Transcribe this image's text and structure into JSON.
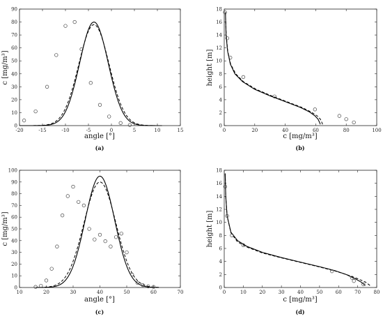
{
  "chart_data": [
    {
      "id": "a",
      "type": "scatter",
      "caption": "(a)",
      "xlabel": "angle [°]",
      "ylabel": "c [mg/m³]",
      "xlim": [
        -20,
        15
      ],
      "ylim": [
        0,
        90
      ],
      "xticks": [
        -20,
        -15,
        -10,
        -5,
        0,
        5,
        10,
        15
      ],
      "yticks": [
        0,
        10,
        20,
        30,
        40,
        50,
        60,
        70,
        80,
        90
      ],
      "grid": false,
      "points": [
        [
          -19,
          4
        ],
        [
          -16.5,
          11
        ],
        [
          -14,
          30
        ],
        [
          -12,
          54.5
        ],
        [
          -10,
          77
        ],
        [
          -8,
          80
        ],
        [
          -6.5,
          59
        ],
        [
          -4.5,
          33
        ],
        [
          -2.5,
          16
        ],
        [
          -0.5,
          7
        ],
        [
          2,
          2
        ],
        [
          4,
          0.5
        ]
      ],
      "curves": [
        {
          "style": "solid",
          "kind": "gauss",
          "peak_x": -3.8,
          "peak_y": 80,
          "sigma": 3.1,
          "range": [
            -20,
            11
          ]
        },
        {
          "style": "dashed",
          "kind": "gauss",
          "peak_x": -3.8,
          "peak_y": 78,
          "sigma": 3.3,
          "range": [
            -20,
            11
          ]
        }
      ]
    },
    {
      "id": "b",
      "type": "scatter",
      "caption": "(b)",
      "xlabel": "c [mg/m³]",
      "ylabel": "height [m]",
      "xlim": [
        0,
        100
      ],
      "ylim": [
        0,
        18
      ],
      "xticks": [
        0,
        20,
        40,
        60,
        80,
        100
      ],
      "yticks": [
        0,
        2,
        4,
        6,
        8,
        10,
        12,
        14,
        16,
        18
      ],
      "grid": false,
      "points": [
        [
          0.5,
          17.5
        ],
        [
          2,
          13.5
        ],
        [
          4,
          10.5
        ],
        [
          12.5,
          7.5
        ],
        [
          33,
          4.5
        ],
        [
          59.5,
          2.5
        ],
        [
          75.5,
          1.5
        ],
        [
          80,
          1.0
        ],
        [
          85,
          0.5
        ]
      ],
      "curves": [
        {
          "style": "solid",
          "kind": "path",
          "xy": [
            [
              0.8,
              17.5
            ],
            [
              1.2,
              14
            ],
            [
              2.2,
              11.5
            ],
            [
              4,
              9.5
            ],
            [
              7,
              8
            ],
            [
              12,
              6.8
            ],
            [
              20,
              5.6
            ],
            [
              30,
              4.6
            ],
            [
              40,
              3.7
            ],
            [
              50,
              2.8
            ],
            [
              56,
              2.1
            ],
            [
              59.5,
              1.5
            ],
            [
              61.5,
              1.0
            ],
            [
              62.5,
              0.5
            ],
            [
              63,
              0.2
            ]
          ]
        },
        {
          "style": "dashed",
          "kind": "path",
          "xy": [
            [
              0.8,
              17.5
            ],
            [
              1.3,
              14
            ],
            [
              2.3,
              11.5
            ],
            [
              4.2,
              9.5
            ],
            [
              7.5,
              8
            ],
            [
              12.5,
              6.8
            ],
            [
              21,
              5.6
            ],
            [
              31,
              4.6
            ],
            [
              41,
              3.7
            ],
            [
              51,
              2.8
            ],
            [
              57,
              2.1
            ],
            [
              61,
              1.5
            ],
            [
              63,
              1.0
            ],
            [
              64,
              0.5
            ],
            [
              64.5,
              0.2
            ]
          ]
        }
      ]
    },
    {
      "id": "c",
      "type": "scatter",
      "caption": "(c)",
      "xlabel": "angle [°]",
      "ylabel": "c [mg/m³]",
      "xlim": [
        10,
        70
      ],
      "ylim": [
        0,
        100
      ],
      "xticks": [
        10,
        20,
        30,
        40,
        50,
        60,
        70
      ],
      "yticks": [
        0,
        10,
        20,
        30,
        40,
        50,
        60,
        70,
        80,
        90,
        100
      ],
      "grid": false,
      "points": [
        [
          16,
          0.5
        ],
        [
          18,
          1.5
        ],
        [
          20,
          6
        ],
        [
          22,
          16
        ],
        [
          24,
          35
        ],
        [
          26,
          61.5
        ],
        [
          28,
          78
        ],
        [
          30,
          86
        ],
        [
          32,
          73
        ],
        [
          34,
          70
        ],
        [
          36,
          50
        ],
        [
          38,
          41
        ],
        [
          40,
          45
        ],
        [
          42,
          39.5
        ],
        [
          44,
          35
        ],
        [
          46,
          43
        ],
        [
          48,
          46
        ],
        [
          50,
          30
        ],
        [
          52,
          11
        ],
        [
          54,
          4
        ],
        [
          56,
          2
        ],
        [
          58,
          1
        ],
        [
          60,
          0.5
        ]
      ],
      "curves": [
        {
          "style": "solid",
          "kind": "gauss",
          "peak_x": 40,
          "peak_y": 95,
          "sigma": 5.5,
          "range": [
            16,
            62
          ]
        },
        {
          "style": "dashed",
          "kind": "gauss",
          "peak_x": 40,
          "peak_y": 90,
          "sigma": 6.0,
          "range": [
            16,
            62
          ]
        }
      ]
    },
    {
      "id": "d",
      "type": "scatter",
      "caption": "(d)",
      "xlabel": "c [mg/m³]",
      "ylabel": "height [m]",
      "xlim": [
        0,
        80
      ],
      "ylim": [
        0,
        18
      ],
      "xticks": [
        0,
        10,
        20,
        30,
        40,
        50,
        60,
        70,
        80
      ],
      "yticks": [
        0,
        2,
        4,
        6,
        8,
        10,
        12,
        14,
        16,
        18
      ],
      "grid": false,
      "points": [
        [
          0.5,
          15.5
        ],
        [
          1.5,
          11
        ],
        [
          4,
          8
        ],
        [
          10,
          6.5
        ],
        [
          56.5,
          2.5
        ],
        [
          67,
          1.5
        ],
        [
          68,
          1.0
        ],
        [
          73,
          0.5
        ]
      ],
      "curves": [
        {
          "style": "solid",
          "kind": "path",
          "xy": [
            [
              0.5,
              17.5
            ],
            [
              0.8,
              14
            ],
            [
              1.5,
              11
            ],
            [
              3.5,
              8.5
            ],
            [
              7,
              7.2
            ],
            [
              12,
              6.3
            ],
            [
              20,
              5.4
            ],
            [
              30,
              4.6
            ],
            [
              40,
              3.9
            ],
            [
              50,
              3.2
            ],
            [
              58,
              2.6
            ],
            [
              64,
              2.0
            ],
            [
              69,
              1.3
            ],
            [
              72,
              0.8
            ],
            [
              74,
              0.3
            ]
          ]
        },
        {
          "style": "dashed",
          "kind": "path",
          "xy": [
            [
              0.5,
              17.5
            ],
            [
              0.8,
              14
            ],
            [
              1.5,
              11
            ],
            [
              3.5,
              8.4
            ],
            [
              7,
              7.0
            ],
            [
              12,
              6.2
            ],
            [
              20,
              5.3
            ],
            [
              30,
              4.55
            ],
            [
              40,
              3.85
            ],
            [
              50,
              3.15
            ],
            [
              58,
              2.55
            ],
            [
              64.5,
              1.95
            ],
            [
              70,
              1.35
            ],
            [
              74,
              0.85
            ],
            [
              76.5,
              0.3
            ]
          ]
        }
      ]
    }
  ]
}
